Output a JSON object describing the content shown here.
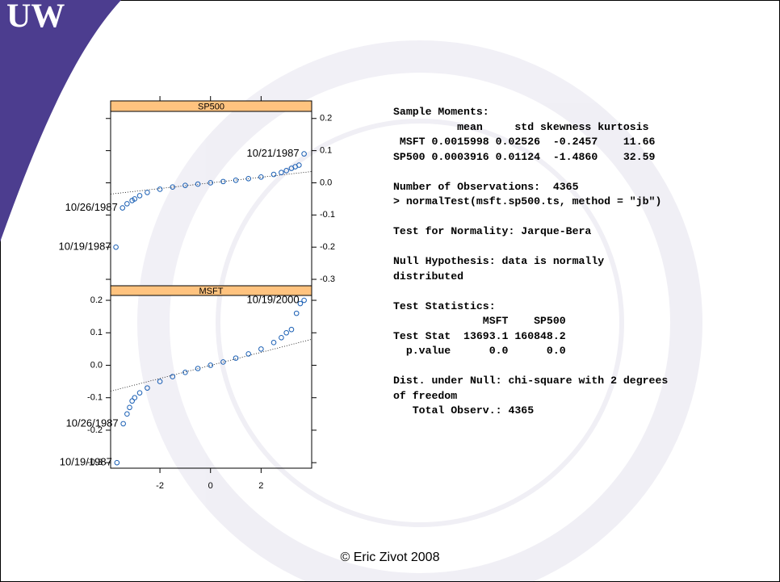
{
  "slide": {
    "logo": "UW",
    "footer": "© Eric Zivot 2008",
    "output": [
      [
        "Sample Moments:",
        "          mean     std skewness kurtosis",
        " MSFT 0.0015998 0.02526  -0.2457    11.66",
        "SP500 0.0003916 0.01124  -1.4860    32.59"
      ],
      [
        "Number of Observations:  4365",
        "> normalTest(msft.sp500.ts, method = \"jb\")"
      ],
      [
        "Test for Normality: Jarque-Bera"
      ],
      [
        "Null Hypothesis: data is normally",
        "distributed"
      ],
      [
        "Test Statistics:",
        "              MSFT    SP500",
        "Test Stat  13693.1 160848.2",
        "  p.value      0.0      0.0"
      ],
      [
        "Dist. under Null: chi-square with 2 degrees",
        "of freedom",
        "   Total Observ.: 4365"
      ]
    ]
  },
  "chart_data": [
    {
      "type": "scatter",
      "title": "SP500",
      "color": "#1a5fb4",
      "x": [
        -3.74,
        -3.48,
        -3.3,
        -3.1,
        -3.0,
        -2.8,
        -2.5,
        -2.0,
        -1.5,
        -1.0,
        -0.5,
        0,
        0.5,
        1.0,
        1.5,
        2.0,
        2.5,
        2.8,
        3.0,
        3.2,
        3.35,
        3.5,
        3.7
      ],
      "y": [
        -0.2,
        -0.078,
        -0.065,
        -0.055,
        -0.05,
        -0.04,
        -0.03,
        -0.02,
        -0.013,
        -0.008,
        -0.004,
        0,
        0.004,
        0.008,
        0.013,
        0.018,
        0.026,
        0.032,
        0.038,
        0.045,
        0.05,
        0.055,
        0.09
      ],
      "line": {
        "x": [
          -3.95,
          4.0
        ],
        "y": [
          -0.035,
          0.035
        ]
      },
      "annotations": [
        {
          "text": "10/21/1987",
          "x": 3.7,
          "y": 0.09
        },
        {
          "text": "10/26/1987",
          "x": -3.48,
          "y": -0.078
        },
        {
          "text": "10/19/1987",
          "x": -3.74,
          "y": -0.2
        }
      ],
      "xlim": [
        -3.95,
        4.0
      ],
      "xticks": [
        -2,
        0,
        2
      ],
      "ylim": [
        -0.32,
        0.222
      ],
      "yticks": [
        0.2,
        0.1,
        {
          "value": 0,
          "label": "0.0"
        },
        -0.1,
        -0.2,
        -0.3
      ],
      "y_axis_side": "right"
    },
    {
      "type": "scatter",
      "title": "MSFT",
      "color": "#1a5fb4",
      "x": [
        -3.7,
        -3.45,
        -3.3,
        -3.2,
        -3.1,
        -3.0,
        -2.8,
        -2.5,
        -2.0,
        -1.5,
        -1.0,
        -0.5,
        0,
        0.5,
        1.0,
        1.5,
        2.0,
        2.5,
        2.8,
        3.0,
        3.2,
        3.4,
        3.55,
        3.7
      ],
      "y": [
        -0.3,
        -0.18,
        -0.15,
        -0.13,
        -0.11,
        -0.1,
        -0.085,
        -0.07,
        -0.05,
        -0.035,
        -0.022,
        -0.01,
        0,
        0.01,
        0.022,
        0.035,
        0.05,
        0.07,
        0.085,
        0.1,
        0.11,
        0.16,
        0.19,
        0.2
      ],
      "line": {
        "x": [
          -3.95,
          4.0
        ],
        "y": [
          -0.08,
          0.08
        ]
      },
      "annotations": [
        {
          "text": "10/19/2000",
          "x": 3.7,
          "y": 0.2
        },
        {
          "text": "10/26/1987",
          "x": -3.45,
          "y": -0.18
        },
        {
          "text": "10/19/1987",
          "x": -3.7,
          "y": -0.3
        }
      ],
      "xlim": [
        -3.95,
        4.0
      ],
      "xticks": [
        -2,
        0,
        2
      ],
      "ylim": [
        -0.317,
        0.215
      ],
      "yticks": [
        0.2,
        0.1,
        {
          "value": 0,
          "label": "0.0"
        },
        -0.1,
        -0.2,
        -0.3
      ],
      "y_axis_side": "left"
    }
  ]
}
